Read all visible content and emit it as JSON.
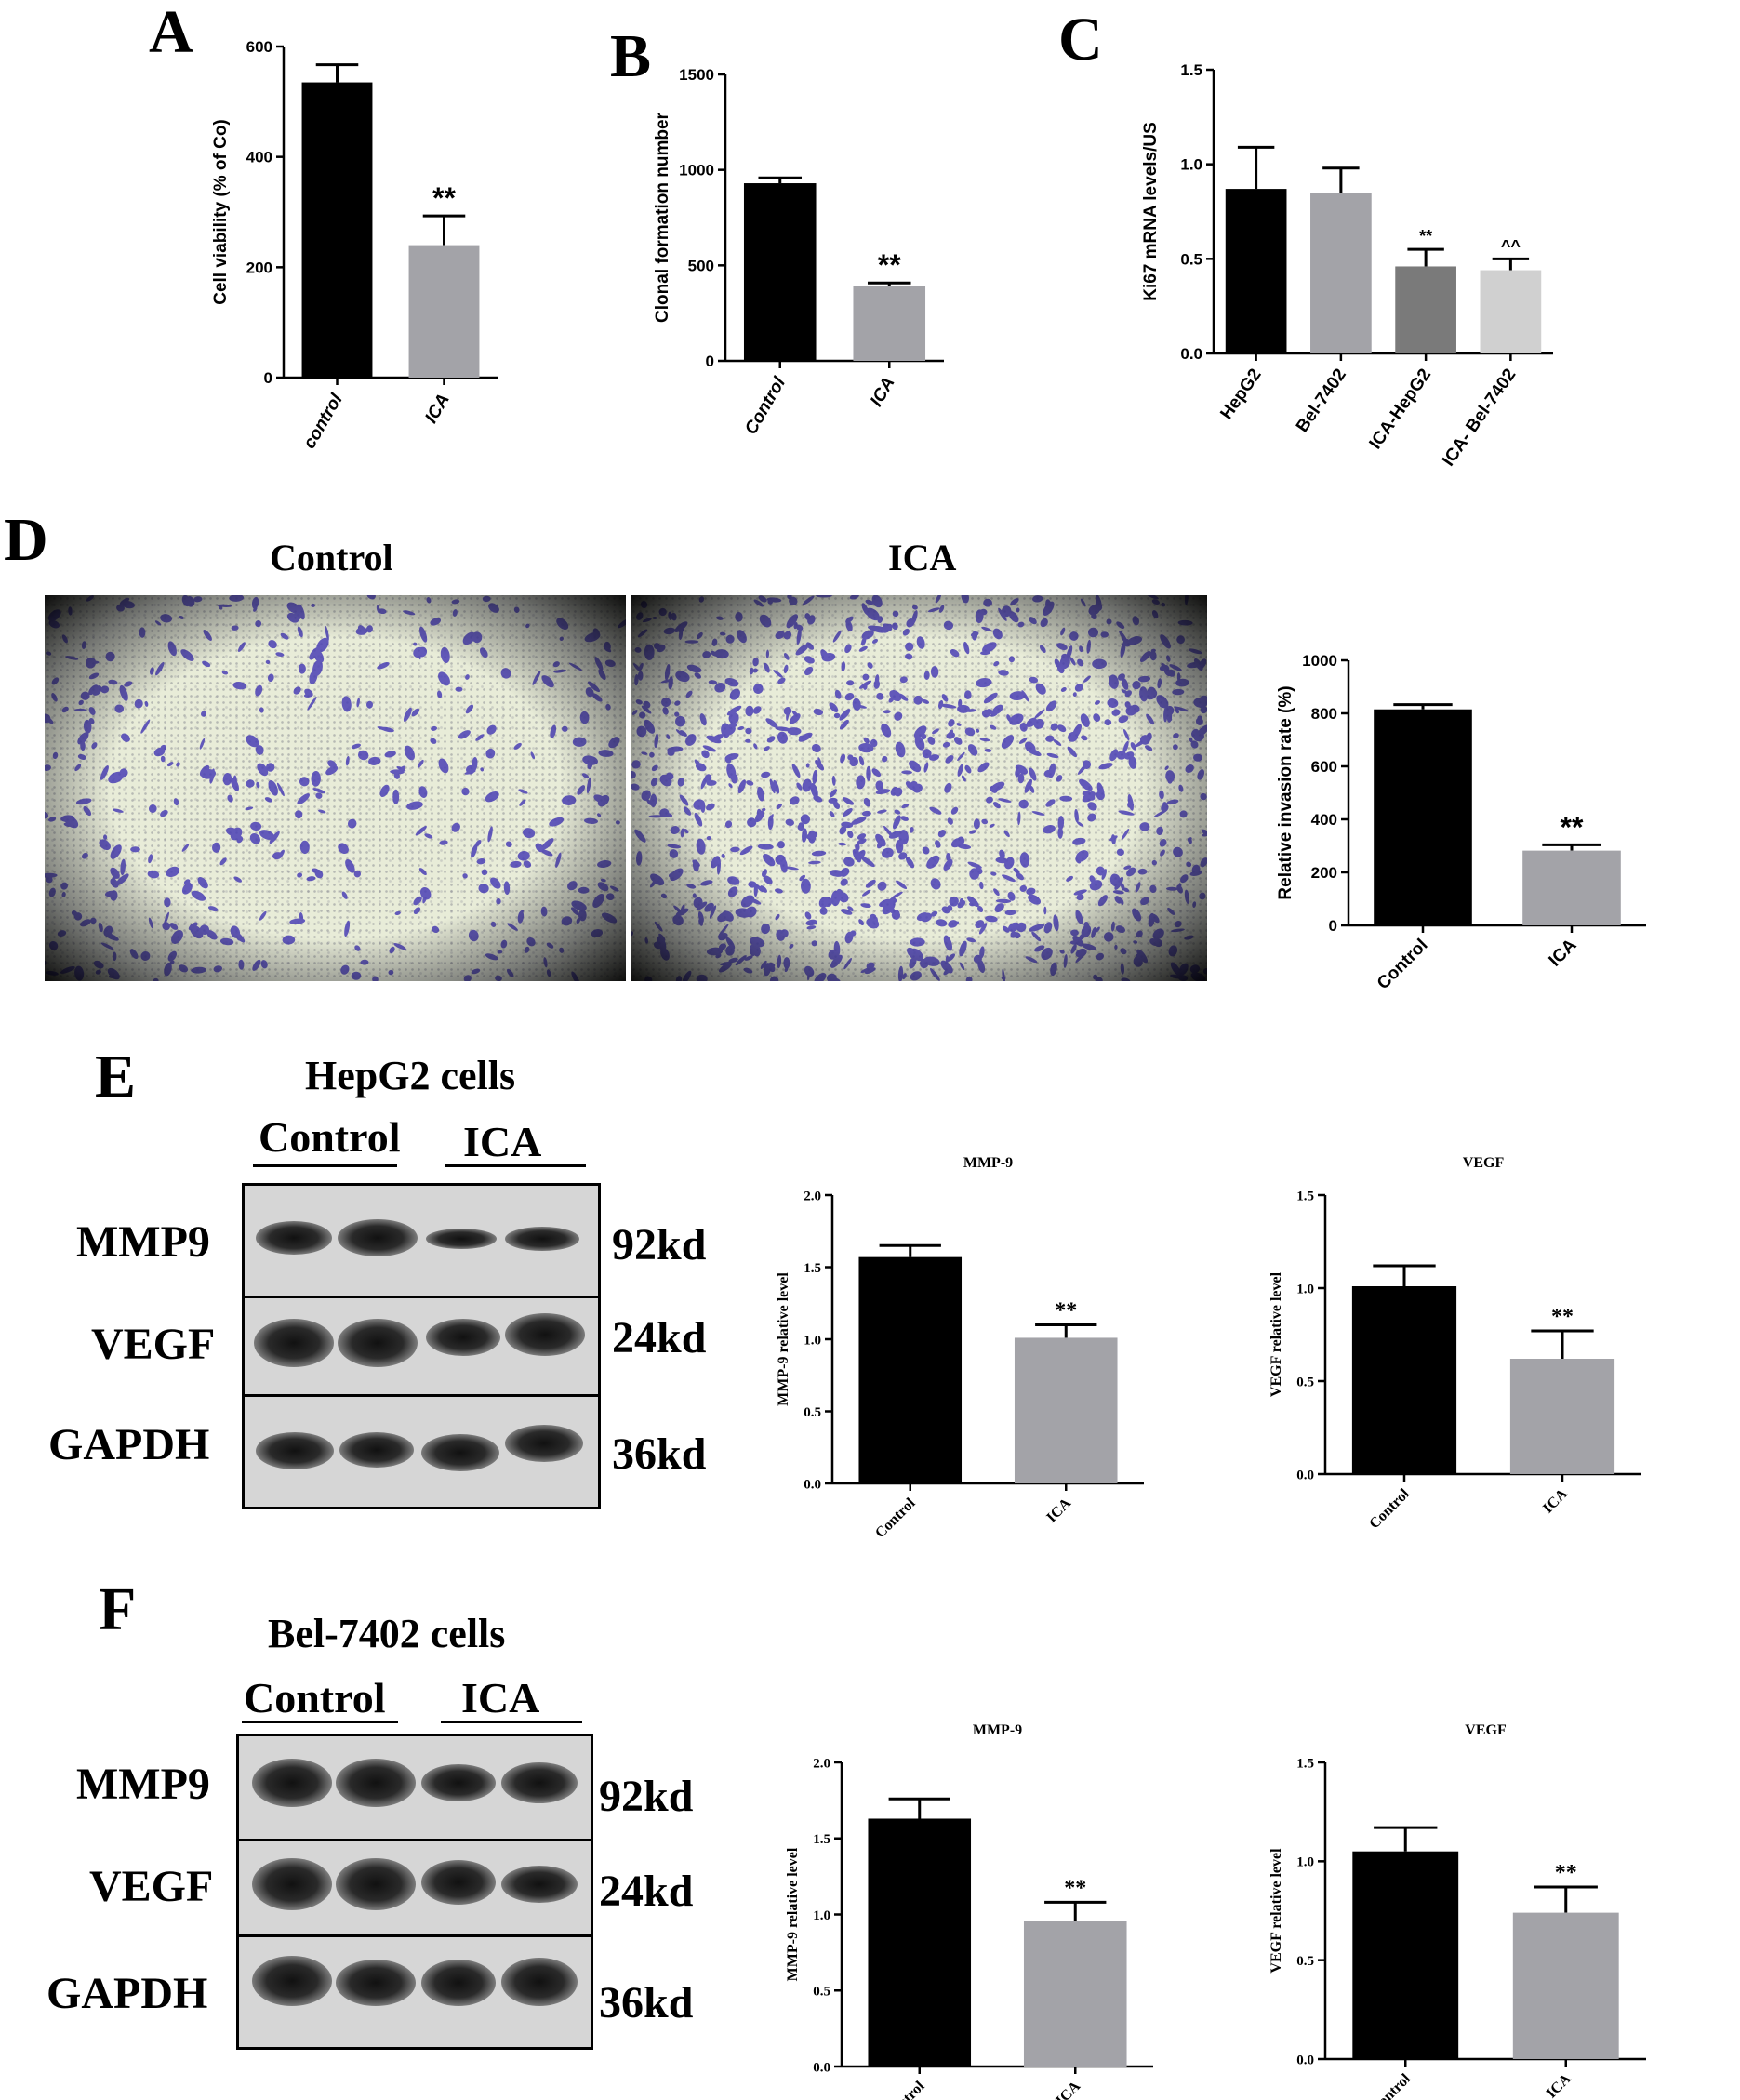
{
  "panels": {
    "A": {
      "letter": "A"
    },
    "B": {
      "letter": "B"
    },
    "C": {
      "letter": "C"
    },
    "D": {
      "letter": "D",
      "image_labels": [
        "Control",
        "ICA"
      ]
    },
    "E": {
      "letter": "E",
      "blot_title": "HepG2 cells",
      "groups": [
        "Control",
        "ICA"
      ],
      "rows": [
        "MMP9",
        "VEGF",
        "GAPDH"
      ],
      "sizes": [
        "92kd",
        "24kd",
        "36kd"
      ]
    },
    "F": {
      "letter": "F",
      "blot_title": "Bel-7402 cells",
      "groups": [
        "Control",
        "ICA"
      ],
      "rows": [
        "MMP9",
        "VEGF",
        "GAPDH"
      ],
      "sizes": [
        "92kd",
        "24kd",
        "36kd"
      ]
    }
  },
  "colors": {
    "black": "#000000",
    "gray": "#a3a3a8",
    "dark_gray": "#7a7a7a",
    "light_gray": "#d0d0d0",
    "crystal_violet": "#4a3fb5"
  },
  "chart_data": [
    {
      "id": "A",
      "type": "bar",
      "title": "",
      "xlabel": "",
      "ylabel": "Cell viability (% of Co)",
      "categories": [
        "control",
        "ICA"
      ],
      "values": [
        535,
        240
      ],
      "errors": [
        32,
        53
      ],
      "ylim": [
        0,
        600
      ],
      "yticks": [
        "0",
        "200",
        "400",
        "600"
      ],
      "bar_colors": [
        "#000000",
        "#a3a3a8"
      ],
      "annotations": [
        "",
        "**"
      ],
      "tick_rotation": -60,
      "tick_italic": true
    },
    {
      "id": "B",
      "type": "bar",
      "title": "",
      "xlabel": "",
      "ylabel": "Clonal formation number",
      "categories": [
        "Control",
        "ICA"
      ],
      "values": [
        930,
        390
      ],
      "errors": [
        28,
        18
      ],
      "ylim": [
        0,
        1500
      ],
      "yticks": [
        "0",
        "500",
        "1000",
        "1500"
      ],
      "bar_colors": [
        "#000000",
        "#a3a3a8"
      ],
      "annotations": [
        "",
        "**"
      ],
      "tick_rotation": -60,
      "tick_italic": true
    },
    {
      "id": "C",
      "type": "bar",
      "title": "",
      "xlabel": "",
      "ylabel": "Ki67 mRNA levels/US",
      "categories": [
        "HepG2",
        "Bel-7402",
        "ICA-HepG2",
        "ICA- Bel-7402"
      ],
      "values": [
        0.87,
        0.85,
        0.46,
        0.44
      ],
      "errors": [
        0.22,
        0.13,
        0.09,
        0.06
      ],
      "ylim": [
        0,
        1.5
      ],
      "yticks": [
        "0.0",
        "0.5",
        "1.0",
        "1.5"
      ],
      "bar_colors": [
        "#000000",
        "#a3a3a8",
        "#7a7a7a",
        "#d0d0d0"
      ],
      "annotations": [
        "",
        "",
        "**",
        "^^"
      ],
      "tick_rotation": -55,
      "tick_italic": false
    },
    {
      "id": "D",
      "type": "bar",
      "title": "",
      "xlabel": "",
      "ylabel": "Relative invasion rate (%)",
      "categories": [
        "Control",
        "ICA"
      ],
      "values": [
        815,
        282
      ],
      "errors": [
        18,
        22
      ],
      "ylim": [
        0,
        1000
      ],
      "yticks": [
        "0",
        "200",
        "400",
        "600",
        "800",
        "1000"
      ],
      "bar_colors": [
        "#000000",
        "#a3a3a8"
      ],
      "annotations": [
        "",
        "**"
      ],
      "tick_rotation": -45,
      "tick_italic": false
    },
    {
      "id": "E-MMP9",
      "type": "bar",
      "title": "MMP-9",
      "xlabel": "",
      "ylabel": "MMP-9 relative level",
      "categories": [
        "Control",
        "ICA"
      ],
      "values": [
        1.57,
        1.01
      ],
      "errors": [
        0.08,
        0.09
      ],
      "ylim": [
        0,
        2.0
      ],
      "yticks": [
        "0.0",
        "0.5",
        "1.0",
        "1.5",
        "2.0"
      ],
      "bar_colors": [
        "#000000",
        "#a3a3a8"
      ],
      "annotations": [
        "",
        "**"
      ],
      "tick_rotation": -45,
      "tick_italic": false
    },
    {
      "id": "E-VEGF",
      "type": "bar",
      "title": "VEGF",
      "xlabel": "",
      "ylabel": "VEGF relative level",
      "categories": [
        "Control",
        "ICA"
      ],
      "values": [
        1.01,
        0.62
      ],
      "errors": [
        0.11,
        0.15
      ],
      "ylim": [
        0,
        1.5
      ],
      "yticks": [
        "0.0",
        "0.5",
        "1.0",
        "1.5"
      ],
      "bar_colors": [
        "#000000",
        "#a3a3a8"
      ],
      "annotations": [
        "",
        "**"
      ],
      "tick_rotation": -45,
      "tick_italic": false
    },
    {
      "id": "F-MMP9",
      "type": "bar",
      "title": "MMP-9",
      "xlabel": "",
      "ylabel": "MMP-9 relative level",
      "categories": [
        "Control",
        "ICA"
      ],
      "values": [
        1.63,
        0.96
      ],
      "errors": [
        0.13,
        0.12
      ],
      "ylim": [
        0,
        2.0
      ],
      "yticks": [
        "0.0",
        "0.5",
        "1.0",
        "1.5",
        "2.0"
      ],
      "bar_colors": [
        "#000000",
        "#a3a3a8"
      ],
      "annotations": [
        "",
        "**"
      ],
      "tick_rotation": -45,
      "tick_italic": false
    },
    {
      "id": "F-VEGF",
      "type": "bar",
      "title": "VEGF",
      "xlabel": "",
      "ylabel": "VEGF relative level",
      "categories": [
        "Control",
        "ICA"
      ],
      "values": [
        1.05,
        0.74
      ],
      "errors": [
        0.12,
        0.13
      ],
      "ylim": [
        0,
        1.5
      ],
      "yticks": [
        "0.0",
        "0.5",
        "1.0",
        "1.5"
      ],
      "bar_colors": [
        "#000000",
        "#a3a3a8"
      ],
      "annotations": [
        "",
        "**"
      ],
      "tick_rotation": -45,
      "tick_italic": false
    }
  ]
}
